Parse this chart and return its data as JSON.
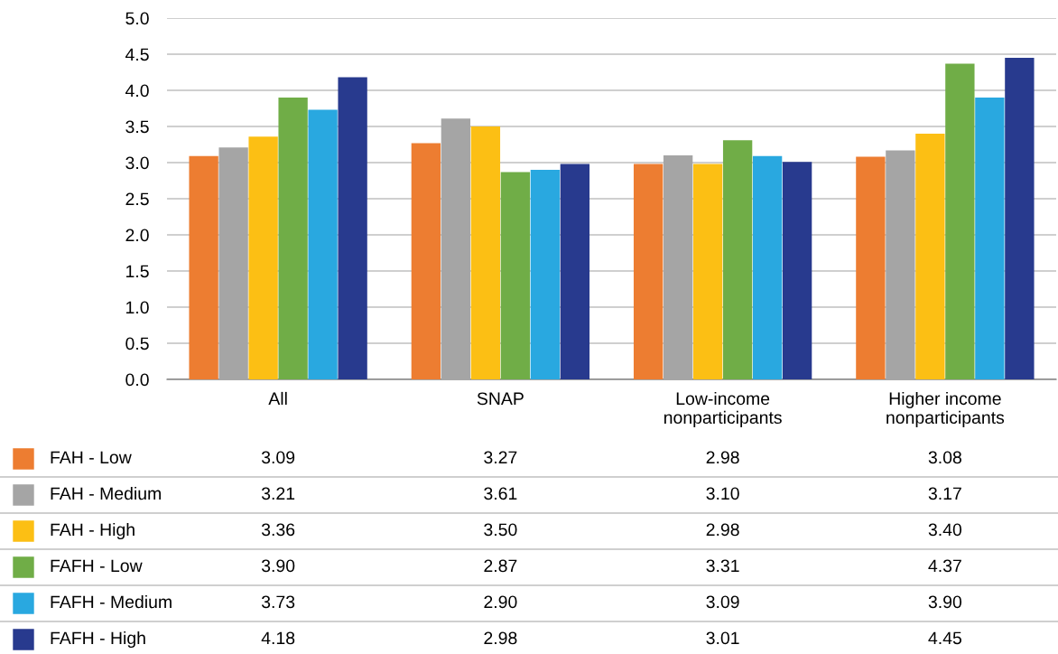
{
  "chart_data": {
    "type": "bar",
    "categories": [
      "All",
      "SNAP",
      "Low-income\nnonparticipants",
      "Higher income\nnonparticipants"
    ],
    "series": [
      {
        "name": "FAH - Low",
        "color": "#ed7d31",
        "values": [
          3.09,
          3.27,
          2.98,
          3.08
        ],
        "value_labels": [
          "3.09",
          "3.27",
          "2.98",
          "3.08"
        ]
      },
      {
        "name": "FAH - Medium",
        "color": "#a5a5a5",
        "values": [
          3.21,
          3.61,
          3.1,
          3.17
        ],
        "value_labels": [
          "3.21",
          "3.61",
          "3.10",
          "3.17"
        ]
      },
      {
        "name": "FAH - High",
        "color": "#fcbf14",
        "values": [
          3.36,
          3.5,
          2.98,
          3.4
        ],
        "value_labels": [
          "3.36",
          "3.50",
          "2.98",
          "3.40"
        ]
      },
      {
        "name": "FAFH - Low",
        "color": "#70ad47",
        "values": [
          3.9,
          2.87,
          3.31,
          4.37
        ],
        "value_labels": [
          "3.90",
          "2.87",
          "3.31",
          "4.37"
        ]
      },
      {
        "name": "FAFH - Medium",
        "color": "#29a8e0",
        "values": [
          3.73,
          2.9,
          3.09,
          3.9
        ],
        "value_labels": [
          "3.73",
          "2.90",
          "3.09",
          "3.90"
        ]
      },
      {
        "name": "FAFH - High",
        "color": "#283a8e",
        "values": [
          4.18,
          2.98,
          3.01,
          4.45
        ],
        "value_labels": [
          "4.18",
          "2.98",
          "3.01",
          "4.45"
        ]
      }
    ],
    "ylim": [
      0,
      5
    ],
    "yticks": [
      {
        "value": 0,
        "label": "0.0"
      },
      {
        "value": 0.5,
        "label": "0.5"
      },
      {
        "value": 1,
        "label": "1.0"
      },
      {
        "value": 1.5,
        "label": "1.5"
      },
      {
        "value": 2,
        "label": "2.0"
      },
      {
        "value": 2.5,
        "label": "2.5"
      },
      {
        "value": 3,
        "label": "3.0"
      },
      {
        "value": 3.5,
        "label": "3.5"
      },
      {
        "value": 4,
        "label": "4.0"
      },
      {
        "value": 4.5,
        "label": "4.5"
      },
      {
        "value": 5,
        "label": "5.0"
      }
    ],
    "grid": "y",
    "legend": "bottom"
  }
}
